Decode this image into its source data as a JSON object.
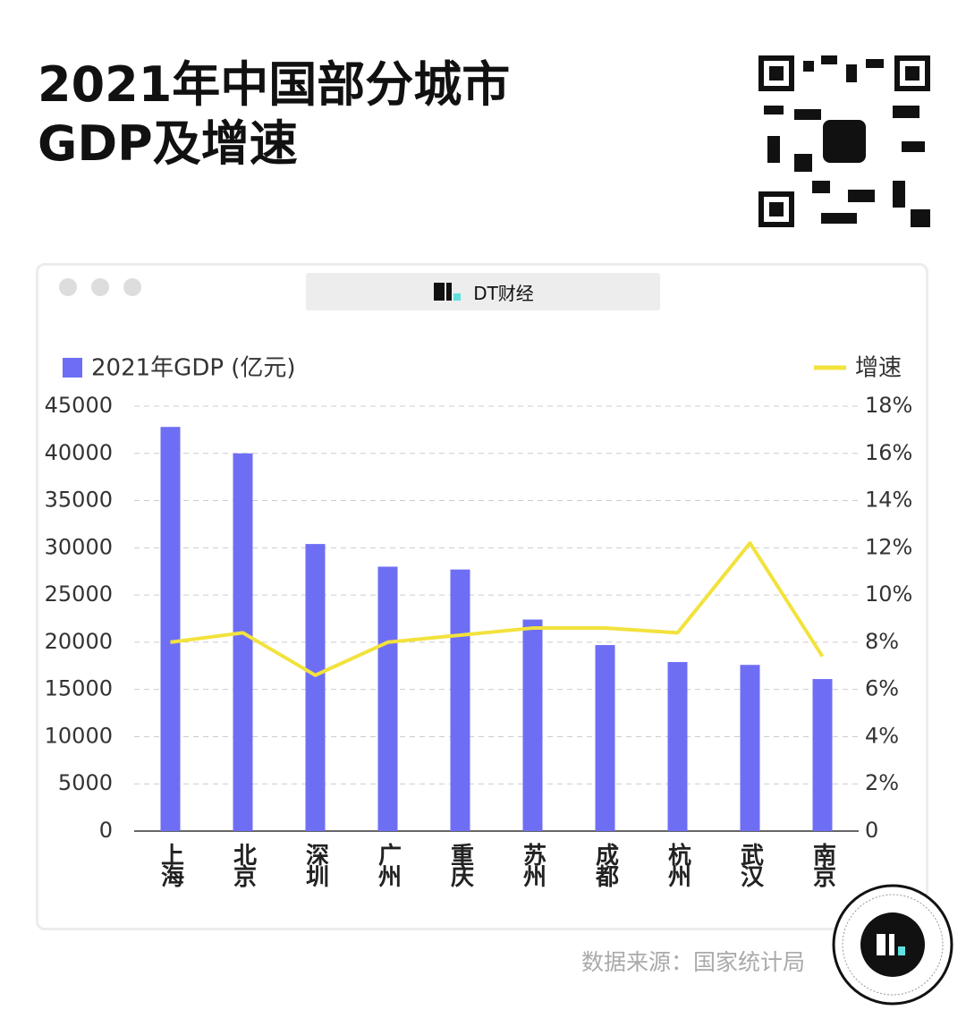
{
  "header_label": "DT财经",
  "source": "数据来源：国家统计局",
  "chart_data": {
    "type": "bar-line",
    "title": "2021年中国部分城市GDP及增速",
    "categories": [
      "上海",
      "北京",
      "深圳",
      "广州",
      "重庆",
      "苏州",
      "成都",
      "杭州",
      "武汉",
      "南京"
    ],
    "series": [
      {
        "name": "2021年GDP (亿元)",
        "type": "bar",
        "color": "#6e6ef5",
        "values": [
          42800,
          40000,
          30400,
          28000,
          27700,
          22400,
          19700,
          17900,
          17600,
          16100
        ]
      },
      {
        "name": "增速",
        "type": "line",
        "axis": "y2",
        "color": "#f2e23c",
        "values": [
          8.0,
          8.4,
          6.6,
          8.0,
          8.3,
          8.6,
          8.6,
          8.4,
          12.2,
          7.4
        ]
      }
    ],
    "ylim": [
      0,
      45000
    ],
    "yticks": [
      0,
      5000,
      10000,
      15000,
      20000,
      25000,
      30000,
      35000,
      40000,
      45000
    ],
    "y2lim": [
      0,
      18
    ],
    "y2ticks": [
      0,
      {
        "value": 2,
        "label": "2%"
      },
      {
        "value": 4,
        "label": "4%"
      },
      {
        "value": 6,
        "label": "6%"
      },
      {
        "value": 8,
        "label": "8%"
      },
      {
        "value": 10,
        "label": "10%"
      },
      {
        "value": 12,
        "label": "12%"
      },
      {
        "value": 14,
        "label": "14%"
      },
      {
        "value": 16,
        "label": "16%"
      },
      {
        "value": 18,
        "label": "18%"
      }
    ],
    "grid": true
  }
}
